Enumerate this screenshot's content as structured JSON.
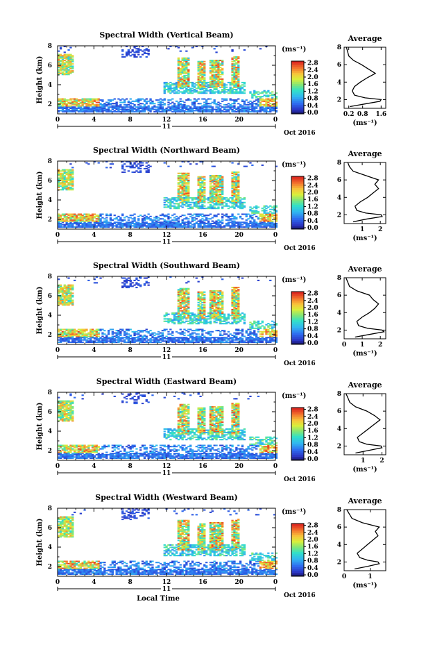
{
  "figure": {
    "x_label": "Local Time",
    "date_label": "Oct 2016",
    "day_label": "11",
    "time_ticks": [
      "0",
      "4",
      "8",
      "12",
      "16",
      "20",
      "0"
    ],
    "height_axis_label": "Height (km)",
    "height_ticks": [
      "2",
      "4",
      "6",
      "8"
    ],
    "unit_label": "(ms⁻¹)",
    "colorbar_ticks": [
      "0.0",
      "0.4",
      "0.8",
      "1.2",
      "1.6",
      "2.0",
      "2.4",
      "2.8"
    ],
    "average_title": "Average",
    "average_xlabel": "(ms⁻¹)"
  },
  "chart_data": [
    {
      "type": "heatmap",
      "title": "Spectral Width (Vertical Beam)",
      "xlabel": "Local Time",
      "ylabel": "Height (km)",
      "xlim_hours": [
        0,
        24
      ],
      "ylim_km": [
        1,
        8
      ],
      "clim": [
        0.0,
        2.8
      ],
      "profile": {
        "title": "Average",
        "xlabel": "(ms⁻¹)",
        "xlim": [
          0,
          1.8
        ],
        "xticks": [
          "0.2",
          "0.8",
          "1.6"
        ],
        "xtick_values": [
          0.2,
          0.8,
          1.6
        ],
        "height_km": [
          1.2,
          1.5,
          1.8,
          2.0,
          2.2,
          2.5,
          3.0,
          3.5,
          4.0,
          4.5,
          5.0,
          5.5,
          6.0,
          6.5,
          7.0,
          7.5,
          8.0
        ],
        "values": [
          0.25,
          0.9,
          1.55,
          1.6,
          0.9,
          0.45,
          0.35,
          0.45,
          0.7,
          1.0,
          1.35,
          1.05,
          0.75,
          0.4,
          0.2,
          0.15,
          0.1
        ]
      }
    },
    {
      "type": "heatmap",
      "title": "Spectral Width (Northward Beam)",
      "xlabel": "Local Time",
      "ylabel": "Height (km)",
      "xlim_hours": [
        0,
        24
      ],
      "ylim_km": [
        1,
        8
      ],
      "clim": [
        0.0,
        2.8
      ],
      "profile": {
        "title": "Average",
        "xlabel": "(ms⁻¹)",
        "xlim": [
          0,
          2.3
        ],
        "xticks": [
          "1",
          "2"
        ],
        "xtick_values": [
          1,
          2
        ],
        "height_km": [
          1.2,
          1.5,
          1.8,
          2.0,
          2.2,
          2.5,
          3.0,
          3.5,
          4.0,
          4.5,
          5.0,
          5.5,
          6.0,
          6.5,
          7.0,
          7.5,
          8.0
        ],
        "values": [
          0.5,
          1.2,
          2.1,
          2.05,
          1.2,
          0.7,
          0.6,
          0.9,
          1.3,
          1.6,
          1.9,
          1.7,
          1.9,
          1.2,
          0.5,
          0.3,
          0.2
        ]
      }
    },
    {
      "type": "heatmap",
      "title": "Spectral Width (Southward Beam)",
      "xlabel": "Local Time",
      "ylabel": "Height (km)",
      "xlim_hours": [
        0,
        24
      ],
      "ylim_km": [
        1,
        8
      ],
      "clim": [
        0.0,
        2.8
      ],
      "profile": {
        "title": "Average",
        "xlabel": "(ms⁻¹)",
        "xlim": [
          0,
          2.3
        ],
        "xticks": [
          "0",
          "1",
          "2"
        ],
        "xtick_values": [
          0,
          1,
          2
        ],
        "height_km": [
          1.2,
          1.5,
          1.8,
          2.0,
          2.2,
          2.5,
          3.0,
          3.5,
          4.0,
          4.5,
          5.0,
          5.5,
          6.0,
          6.5,
          7.0,
          7.5,
          8.0
        ],
        "values": [
          0.6,
          1.4,
          2.2,
          2.1,
          1.3,
          0.8,
          0.7,
          1.0,
          1.4,
          1.7,
          1.9,
          1.6,
          1.4,
          0.7,
          0.3,
          0.2,
          0.1
        ]
      }
    },
    {
      "type": "heatmap",
      "title": "Spectral Width (Eastward Beam)",
      "xlabel": "Local Time",
      "ylabel": "Height (km)",
      "xlim_hours": [
        0,
        24
      ],
      "ylim_km": [
        1,
        8
      ],
      "clim": [
        0.0,
        2.8
      ],
      "profile": {
        "title": "Average",
        "xlabel": "(ms⁻¹)",
        "xlim": [
          0,
          2.2
        ],
        "xticks": [
          "1",
          "2"
        ],
        "xtick_values": [
          1,
          2
        ],
        "height_km": [
          1.2,
          1.5,
          1.8,
          2.0,
          2.2,
          2.5,
          3.0,
          3.5,
          4.0,
          4.5,
          5.0,
          5.5,
          6.0,
          6.5,
          7.0,
          7.5,
          8.0
        ],
        "values": [
          0.6,
          1.3,
          2.0,
          1.95,
          1.2,
          0.8,
          0.7,
          1.0,
          1.3,
          1.6,
          1.9,
          1.6,
          1.2,
          0.6,
          0.3,
          0.2,
          0.1
        ]
      }
    },
    {
      "type": "heatmap",
      "title": "Spectral Width (Westward Beam)",
      "xlabel": "Local Time",
      "ylabel": "Height (km)",
      "xlim_hours": [
        0,
        24
      ],
      "ylim_km": [
        1,
        8
      ],
      "clim": [
        0.0,
        2.8
      ],
      "profile": {
        "title": "Average",
        "xlabel": "(ms⁻¹)",
        "xlim": [
          0,
          1.6
        ],
        "xticks": [
          "0",
          "1"
        ],
        "xtick_values": [
          0,
          1
        ],
        "height_km": [
          1.2,
          1.5,
          1.8,
          2.0,
          2.2,
          2.5,
          3.0,
          3.5,
          4.0,
          4.5,
          5.0,
          5.5,
          6.0,
          6.5,
          7.0,
          7.5,
          8.0
        ],
        "values": [
          0.4,
          0.9,
          1.35,
          1.3,
          0.9,
          0.6,
          0.5,
          0.7,
          0.9,
          1.1,
          1.3,
          1.2,
          1.35,
          0.7,
          0.3,
          0.2,
          0.1
        ]
      }
    }
  ]
}
